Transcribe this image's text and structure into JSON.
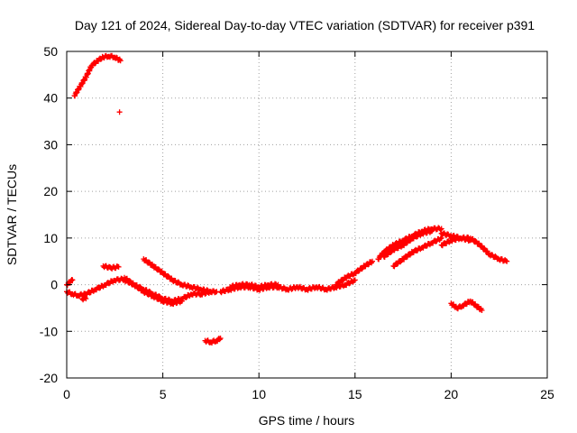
{
  "chart_data": {
    "type": "scatter",
    "title": "Day 121 of 2024, Sidereal Day-to-day VTEC variation (SDTVAR) for receiver p391",
    "xlabel": "GPS time / hours",
    "ylabel": "SDTVAR / TECUs",
    "xlim": [
      0,
      25
    ],
    "ylim": [
      -20,
      50
    ],
    "xticks": [
      0,
      5,
      10,
      15,
      20,
      25
    ],
    "yticks": [
      -20,
      -10,
      0,
      10,
      20,
      30,
      40,
      50
    ],
    "grid": true,
    "marker": "+",
    "marker_color": "#ff0000",
    "series": [
      {
        "name": "SDTVAR",
        "segments": [
          {
            "x": [
              0.4,
              0.7,
              1.0,
              1.3,
              1.6,
              1.9,
              2.2,
              2.5,
              2.8
            ],
            "y": [
              40.5,
              42.5,
              44.5,
              47.0,
              48.0,
              48.8,
              49.0,
              48.8,
              48.0
            ]
          },
          {
            "x": [
              2.75
            ],
            "y": [
              37.0
            ]
          },
          {
            "x": [
              0.0,
              0.3,
              0.6,
              1.0,
              1.5,
              2.0,
              2.5,
              3.0
            ],
            "y": [
              -1.5,
              -2.0,
              -2.3,
              -2.0,
              -1.0,
              0.0,
              1.0,
              1.2
            ]
          },
          {
            "x": [
              0.0,
              0.15,
              0.3
            ],
            "y": [
              0.0,
              0.5,
              1.0
            ]
          },
          {
            "x": [
              0.8,
              1.0
            ],
            "y": [
              -3.0,
              -3.0
            ]
          },
          {
            "x": [
              1.9,
              2.3,
              2.7
            ],
            "y": [
              4.0,
              3.6,
              3.8
            ]
          },
          {
            "x": [
              3.0,
              3.5,
              4.0,
              4.5,
              5.0,
              5.5,
              6.0,
              6.5,
              7.0,
              7.5
            ],
            "y": [
              1.5,
              0.0,
              -1.0,
              -2.0,
              -3.0,
              -3.5,
              -3.0,
              -2.0,
              -2.0,
              -1.5
            ]
          },
          {
            "x": [
              3.0,
              3.5,
              4.0,
              4.5,
              5.0,
              5.5,
              6.0
            ],
            "y": [
              1.0,
              0.0,
              -1.5,
              -2.5,
              -3.5,
              -4.0,
              -3.5
            ]
          },
          {
            "x": [
              4.0,
              4.5,
              5.0,
              5.5,
              6.0,
              6.5,
              7.0,
              7.5,
              7.8
            ],
            "y": [
              5.5,
              4.0,
              2.5,
              1.0,
              0.0,
              -0.5,
              -1.0,
              -1.5,
              -1.5
            ]
          },
          {
            "x": [
              7.2,
              7.5,
              7.8,
              8.0
            ],
            "y": [
              -12.0,
              -12.3,
              -12.0,
              -11.5
            ]
          },
          {
            "x": [
              8.0,
              8.5,
              9.0,
              9.5,
              10.0,
              10.5,
              11.0,
              11.5,
              12.0
            ],
            "y": [
              -1.5,
              -1.0,
              -0.5,
              -0.5,
              -1.0,
              -0.5,
              -0.5,
              -1.0,
              -0.5
            ]
          },
          {
            "x": [
              8.5,
              9.0,
              9.5,
              10.0,
              10.5,
              11.0
            ],
            "y": [
              -0.5,
              0.0,
              0.0,
              -0.5,
              0.0,
              0.0
            ]
          },
          {
            "x": [
              12.0,
              12.5,
              13.0,
              13.5,
              14.0,
              14.5,
              15.0
            ],
            "y": [
              -0.5,
              -1.0,
              -0.5,
              -1.0,
              -0.5,
              0.0,
              1.0
            ]
          },
          {
            "x": [
              14.0,
              14.5,
              15.0,
              15.5,
              15.9
            ],
            "y": [
              0.0,
              1.5,
              2.5,
              4.0,
              5.0
            ]
          },
          {
            "x": [
              16.2,
              16.5,
              17.0,
              17.5,
              18.0,
              18.5,
              19.0,
              19.5
            ],
            "y": [
              5.5,
              7.0,
              8.5,
              9.5,
              10.5,
              11.5,
              12.0,
              12.0
            ]
          },
          {
            "x": [
              16.5,
              17.0,
              17.5,
              18.0,
              18.5,
              19.0
            ],
            "y": [
              6.0,
              7.5,
              8.5,
              10.0,
              11.0,
              11.5
            ]
          },
          {
            "x": [
              17.0,
              17.5,
              18.0,
              18.5,
              19.0,
              19.5
            ],
            "y": [
              4.0,
              5.5,
              7.0,
              8.0,
              9.0,
              10.0
            ]
          },
          {
            "x": [
              19.5,
              20.0,
              20.5,
              21.0,
              21.5,
              22.0,
              22.5,
              22.9
            ],
            "y": [
              11.0,
              10.5,
              10.0,
              10.0,
              8.5,
              6.5,
              5.5,
              5.0
            ]
          },
          {
            "x": [
              19.5,
              20.0,
              20.5,
              21.0
            ],
            "y": [
              8.5,
              9.5,
              10.0,
              9.5
            ]
          },
          {
            "x": [
              20.0,
              20.3,
              20.6,
              21.0,
              21.3,
              21.6
            ],
            "y": [
              -4.0,
              -5.0,
              -4.5,
              -3.5,
              -4.5,
              -5.5
            ]
          }
        ]
      }
    ]
  }
}
